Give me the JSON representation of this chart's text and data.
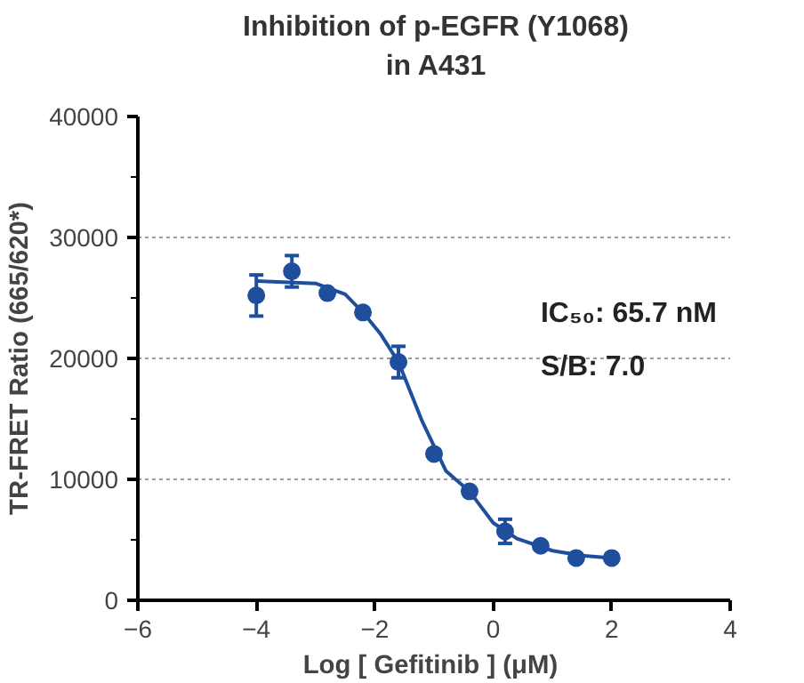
{
  "chart_data": {
    "type": "scatter",
    "title": "Inhibition of p-EGFR (Y1068)\nin A431",
    "xlabel": "Log [ Gefitinib ]  (μM)",
    "ylabel": "TR-FRET Ratio (665/620*)",
    "series": [
      {
        "marker": "circle",
        "color": "#1f4e9c",
        "x": [
          -4,
          -3.4,
          -2.8,
          -2.2,
          -1.6,
          -1.0,
          -0.4,
          0.2,
          0.8,
          1.4,
          2.0
        ],
        "values": [
          25200,
          27200,
          25400,
          23800,
          19700,
          12100,
          9000,
          5700,
          4500,
          3500,
          3500
        ],
        "errors": [
          1700,
          1300,
          null,
          null,
          1300,
          null,
          null,
          1000,
          null,
          null,
          null
        ]
      },
      {
        "type": "line",
        "marker": "none",
        "color": "#1f4e9c",
        "x": [
          -4,
          -3,
          -2.5,
          -2.2,
          -1.9,
          -1.6,
          -1.2,
          -0.8,
          -0.4,
          0,
          0.4,
          1,
          1.5,
          2
        ],
        "values": [
          26400,
          26200,
          25300,
          23800,
          22000,
          19700,
          14800,
          10700,
          9000,
          6400,
          5100,
          4100,
          3700,
          3500
        ]
      }
    ],
    "xlim": [
      -6,
      4
    ],
    "xticks": [
      -6,
      -4,
      -2,
      0,
      2,
      4
    ],
    "ylim": [
      0,
      40000
    ],
    "yticks": [
      0,
      {
        "value": 5000,
        "label": null
      },
      10000,
      {
        "value": 15000,
        "label": null
      },
      20000,
      {
        "value": 25000,
        "label": null
      },
      30000,
      {
        "value": 35000,
        "label": null
      },
      40000
    ],
    "grid": "y",
    "annotations": [
      "IC₅₀:  65.7 nM",
      "S/B:  7.0"
    ]
  }
}
